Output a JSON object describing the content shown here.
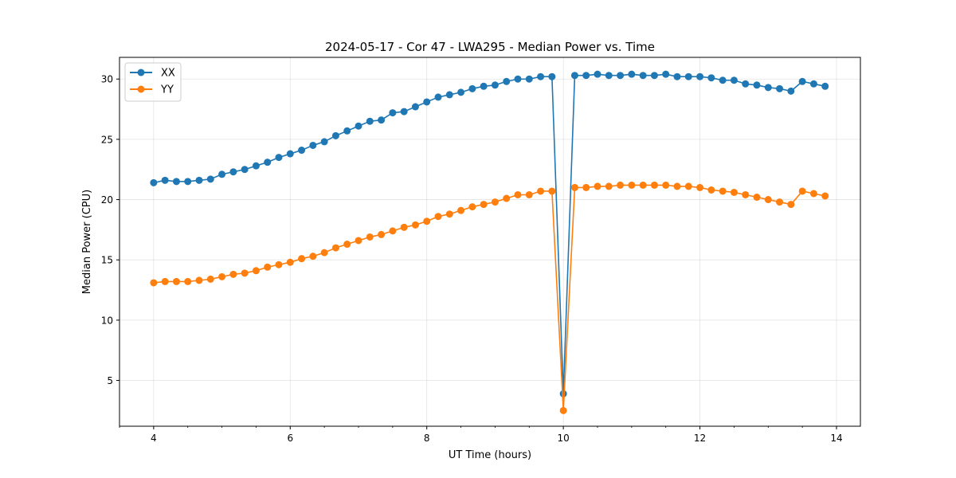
{
  "chart_data": {
    "type": "line",
    "title": "2024-05-17 - Cor 47 - LWA295 - Median Power vs. Time",
    "xlabel": "UT Time (hours)",
    "ylabel": "Median Power (CPU)",
    "xlim": [
      3.5,
      14.35
    ],
    "ylim": [
      1.2,
      31.8
    ],
    "xticks": [
      4,
      6,
      8,
      10,
      12,
      14
    ],
    "yticks": [
      5,
      10,
      15,
      20,
      25,
      30
    ],
    "grid": true,
    "legend_position": "top-left",
    "x": [
      4.0,
      4.1667,
      4.3333,
      4.5,
      4.6667,
      4.8333,
      5.0,
      5.1667,
      5.3333,
      5.5,
      5.6667,
      5.8333,
      6.0,
      6.1667,
      6.3333,
      6.5,
      6.6667,
      6.8333,
      7.0,
      7.1667,
      7.3333,
      7.5,
      7.6667,
      7.8333,
      8.0,
      8.1667,
      8.3333,
      8.5,
      8.6667,
      8.8333,
      9.0,
      9.1667,
      9.3333,
      9.5,
      9.6667,
      9.8333,
      10.0,
      10.1667,
      10.3333,
      10.5,
      10.6667,
      10.8333,
      11.0,
      11.1667,
      11.3333,
      11.5,
      11.6667,
      11.8333,
      12.0,
      12.1667,
      12.3333,
      12.5,
      12.6667,
      12.8333,
      13.0,
      13.1667,
      13.3333,
      13.5,
      13.6667,
      13.8333
    ],
    "series": [
      {
        "name": "XX",
        "color": "#1f77b4",
        "values": [
          21.4,
          21.6,
          21.5,
          21.5,
          21.6,
          21.7,
          22.1,
          22.3,
          22.5,
          22.8,
          23.1,
          23.5,
          23.8,
          24.1,
          24.5,
          24.8,
          25.3,
          25.7,
          26.1,
          26.5,
          26.6,
          27.2,
          27.3,
          27.7,
          28.1,
          28.5,
          28.7,
          28.9,
          29.2,
          29.4,
          29.5,
          29.8,
          30.0,
          30.0,
          30.2,
          30.2,
          3.9,
          30.3,
          30.3,
          30.4,
          30.3,
          30.3,
          30.4,
          30.3,
          30.3,
          30.4,
          30.2,
          30.2,
          30.2,
          30.1,
          29.9,
          29.9,
          29.6,
          29.5,
          29.3,
          29.2,
          29.0,
          29.8,
          29.6,
          29.4
        ]
      },
      {
        "name": "YY",
        "color": "#ff7f0e",
        "values": [
          13.1,
          13.2,
          13.2,
          13.2,
          13.3,
          13.4,
          13.6,
          13.8,
          13.9,
          14.1,
          14.4,
          14.6,
          14.8,
          15.1,
          15.3,
          15.6,
          16.0,
          16.3,
          16.6,
          16.9,
          17.1,
          17.4,
          17.7,
          17.9,
          18.2,
          18.6,
          18.8,
          19.1,
          19.4,
          19.6,
          19.8,
          20.1,
          20.4,
          20.4,
          20.7,
          20.7,
          2.5,
          21.0,
          21.0,
          21.1,
          21.1,
          21.2,
          21.2,
          21.2,
          21.2,
          21.2,
          21.1,
          21.1,
          21.0,
          20.8,
          20.7,
          20.6,
          20.4,
          20.2,
          20.0,
          19.8,
          19.6,
          20.7,
          20.5,
          20.3
        ]
      }
    ]
  }
}
